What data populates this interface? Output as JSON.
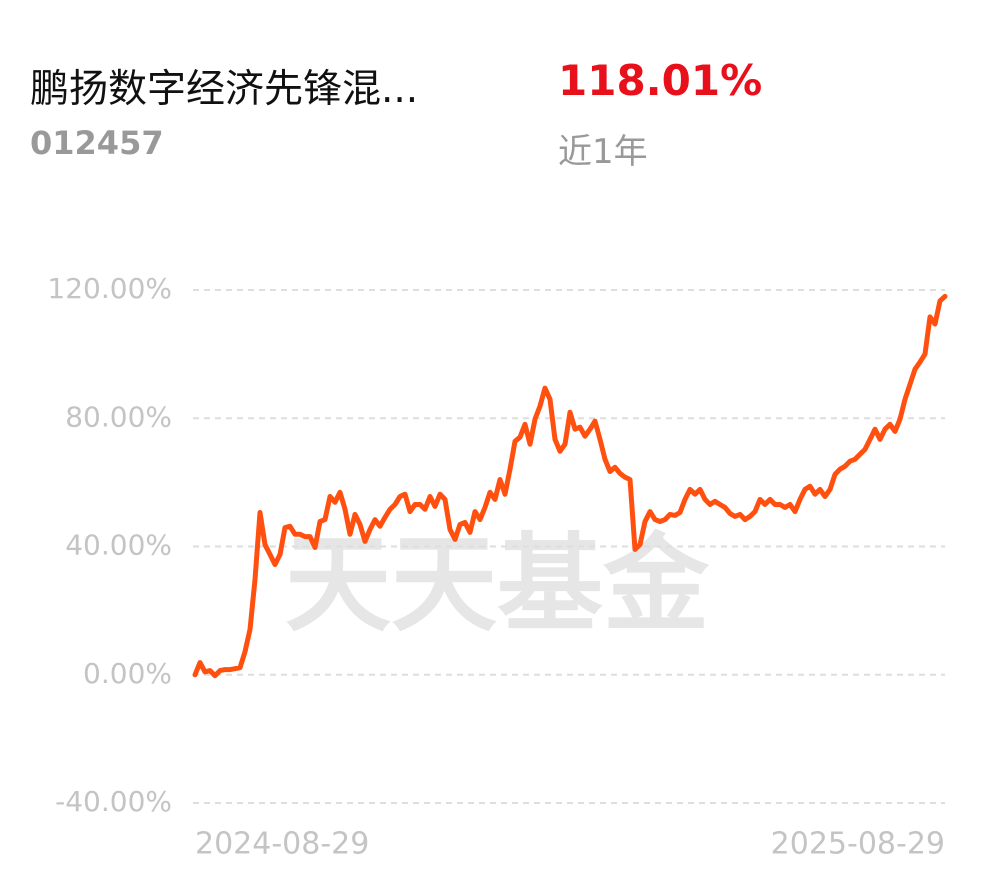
{
  "header": {
    "name": "鹏扬数字经济先锋混...",
    "return": "118.01%",
    "code": "012457",
    "period": "近1年"
  },
  "chart_data": {
    "type": "line",
    "watermark": "天天基金",
    "categories": [
      "2024-08-29",
      null,
      null,
      null,
      null,
      null,
      null,
      null,
      null,
      null,
      null,
      null,
      null,
      null,
      null,
      null,
      null,
      null,
      null,
      null,
      null,
      null,
      null,
      null,
      null,
      null,
      null,
      null,
      null,
      null,
      null,
      null,
      null,
      null,
      null,
      null,
      null,
      null,
      null,
      null,
      null,
      null,
      null,
      null,
      null,
      null,
      null,
      null,
      null,
      null,
      null,
      null,
      null,
      null,
      null,
      null,
      null,
      null,
      null,
      null,
      null,
      null,
      null,
      null,
      null,
      null,
      null,
      null,
      null,
      null,
      null,
      null,
      null,
      null,
      null,
      null,
      null,
      null,
      null,
      null,
      null,
      null,
      null,
      null,
      null,
      null,
      null,
      null,
      null,
      null,
      null,
      null,
      null,
      null,
      null,
      null,
      null,
      null,
      null,
      null,
      null,
      null,
      null,
      null,
      null,
      null,
      null,
      null,
      null,
      null,
      null,
      null,
      null,
      null,
      null,
      null,
      null,
      null,
      null,
      null,
      null,
      null,
      null,
      null,
      null,
      null,
      null,
      null,
      null,
      null,
      null,
      null,
      null,
      null,
      null,
      null,
      null,
      null,
      null,
      null,
      null,
      null,
      null,
      null,
      null,
      null,
      null,
      null,
      null,
      null,
      "2025-08-29"
    ],
    "series": [
      {
        "color": "#ff5010",
        "values": [
          0,
          3.8,
          0.9,
          1.3,
          -0.3,
          1.3,
          1.6,
          1.6,
          1.9,
          2.2,
          7.2,
          14.1,
          29.7,
          50.6,
          40.6,
          37.5,
          34.4,
          37.5,
          45.9,
          46.3,
          43.8,
          43.8,
          43.1,
          43.1,
          39.7,
          47.8,
          48.4,
          55.6,
          53.8,
          56.9,
          51.6,
          43.8,
          50,
          46.9,
          41.6,
          45.3,
          48.4,
          46.3,
          49.1,
          51.6,
          53.1,
          55.6,
          56.3,
          50.9,
          53.1,
          53.1,
          51.6,
          55.6,
          52.5,
          56.3,
          54.7,
          45.3,
          42.2,
          46.9,
          47.5,
          44.4,
          50.9,
          48.4,
          52.2,
          56.9,
          54.7,
          60.9,
          56.3,
          64.1,
          72.8,
          74.1,
          78.1,
          71.9,
          79.7,
          83.8,
          89.4,
          85.9,
          73.4,
          69.7,
          71.9,
          81.9,
          76.6,
          77.2,
          74.4,
          76.6,
          79.1,
          73.4,
          67.2,
          63.4,
          64.7,
          62.8,
          61.6,
          60.9,
          39.1,
          40.6,
          47.8,
          50.9,
          48.4,
          47.8,
          48.4,
          50,
          49.7,
          50.6,
          54.7,
          57.8,
          56.3,
          57.8,
          54.7,
          53.1,
          54.1,
          53.1,
          52.2,
          50.3,
          49.4,
          50,
          48.4,
          49.4,
          50.9,
          54.7,
          53.1,
          54.7,
          53.1,
          53.1,
          52.2,
          53.1,
          50.9,
          54.7,
          57.8,
          58.8,
          56.3,
          57.8,
          55.6,
          57.8,
          62.5,
          64.1,
          65,
          66.6,
          67.2,
          68.8,
          70.3,
          73.4,
          76.6,
          73.4,
          76.6,
          78.1,
          75.9,
          79.7,
          85.9,
          90.6,
          95.3,
          97.5,
          100,
          111.6,
          109.4,
          116.6,
          118.01
        ]
      }
    ],
    "ylim": [
      -40,
      120
    ],
    "yticks": [
      {
        "value": -40,
        "label": "-40.00%"
      },
      {
        "value": 0,
        "label": "0.00%"
      },
      {
        "value": 40,
        "label": "40.00%"
      },
      {
        "value": 80,
        "label": "80.00%"
      },
      {
        "value": 120,
        "label": "120.00%"
      }
    ],
    "grid": true
  }
}
